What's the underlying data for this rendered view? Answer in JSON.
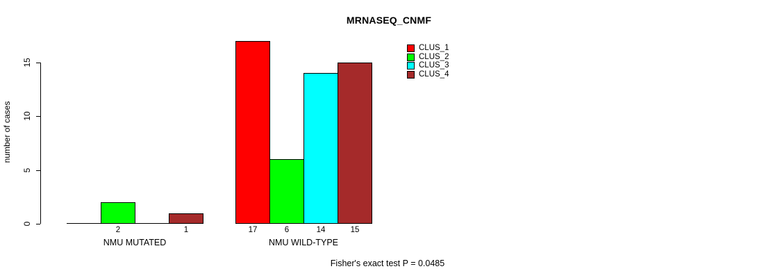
{
  "chart_data": {
    "type": "bar",
    "title": "MRNASEQ_CNMF",
    "xlabel": "",
    "ylabel": "number of cases",
    "ylim": [
      0,
      17
    ],
    "yticks": [
      0,
      5,
      10,
      15
    ],
    "grid": false,
    "legend_position": "top-right",
    "categories": [
      "NMU MUTATED",
      "NMU WILD-TYPE"
    ],
    "series": [
      {
        "name": "CLUS_1",
        "color": "#ff0000",
        "values": [
          0,
          17
        ]
      },
      {
        "name": "CLUS_2",
        "color": "#00ff00",
        "values": [
          2,
          6
        ]
      },
      {
        "name": "CLUS_3",
        "color": "#00ffff",
        "values": [
          0,
          14
        ]
      },
      {
        "name": "CLUS_4",
        "color": "#a52a2a",
        "values": [
          1,
          15
        ]
      }
    ],
    "bar_value_labels": "value shown below each nonzero bar",
    "annotation": "Fisher's exact test P = 0.0485"
  }
}
